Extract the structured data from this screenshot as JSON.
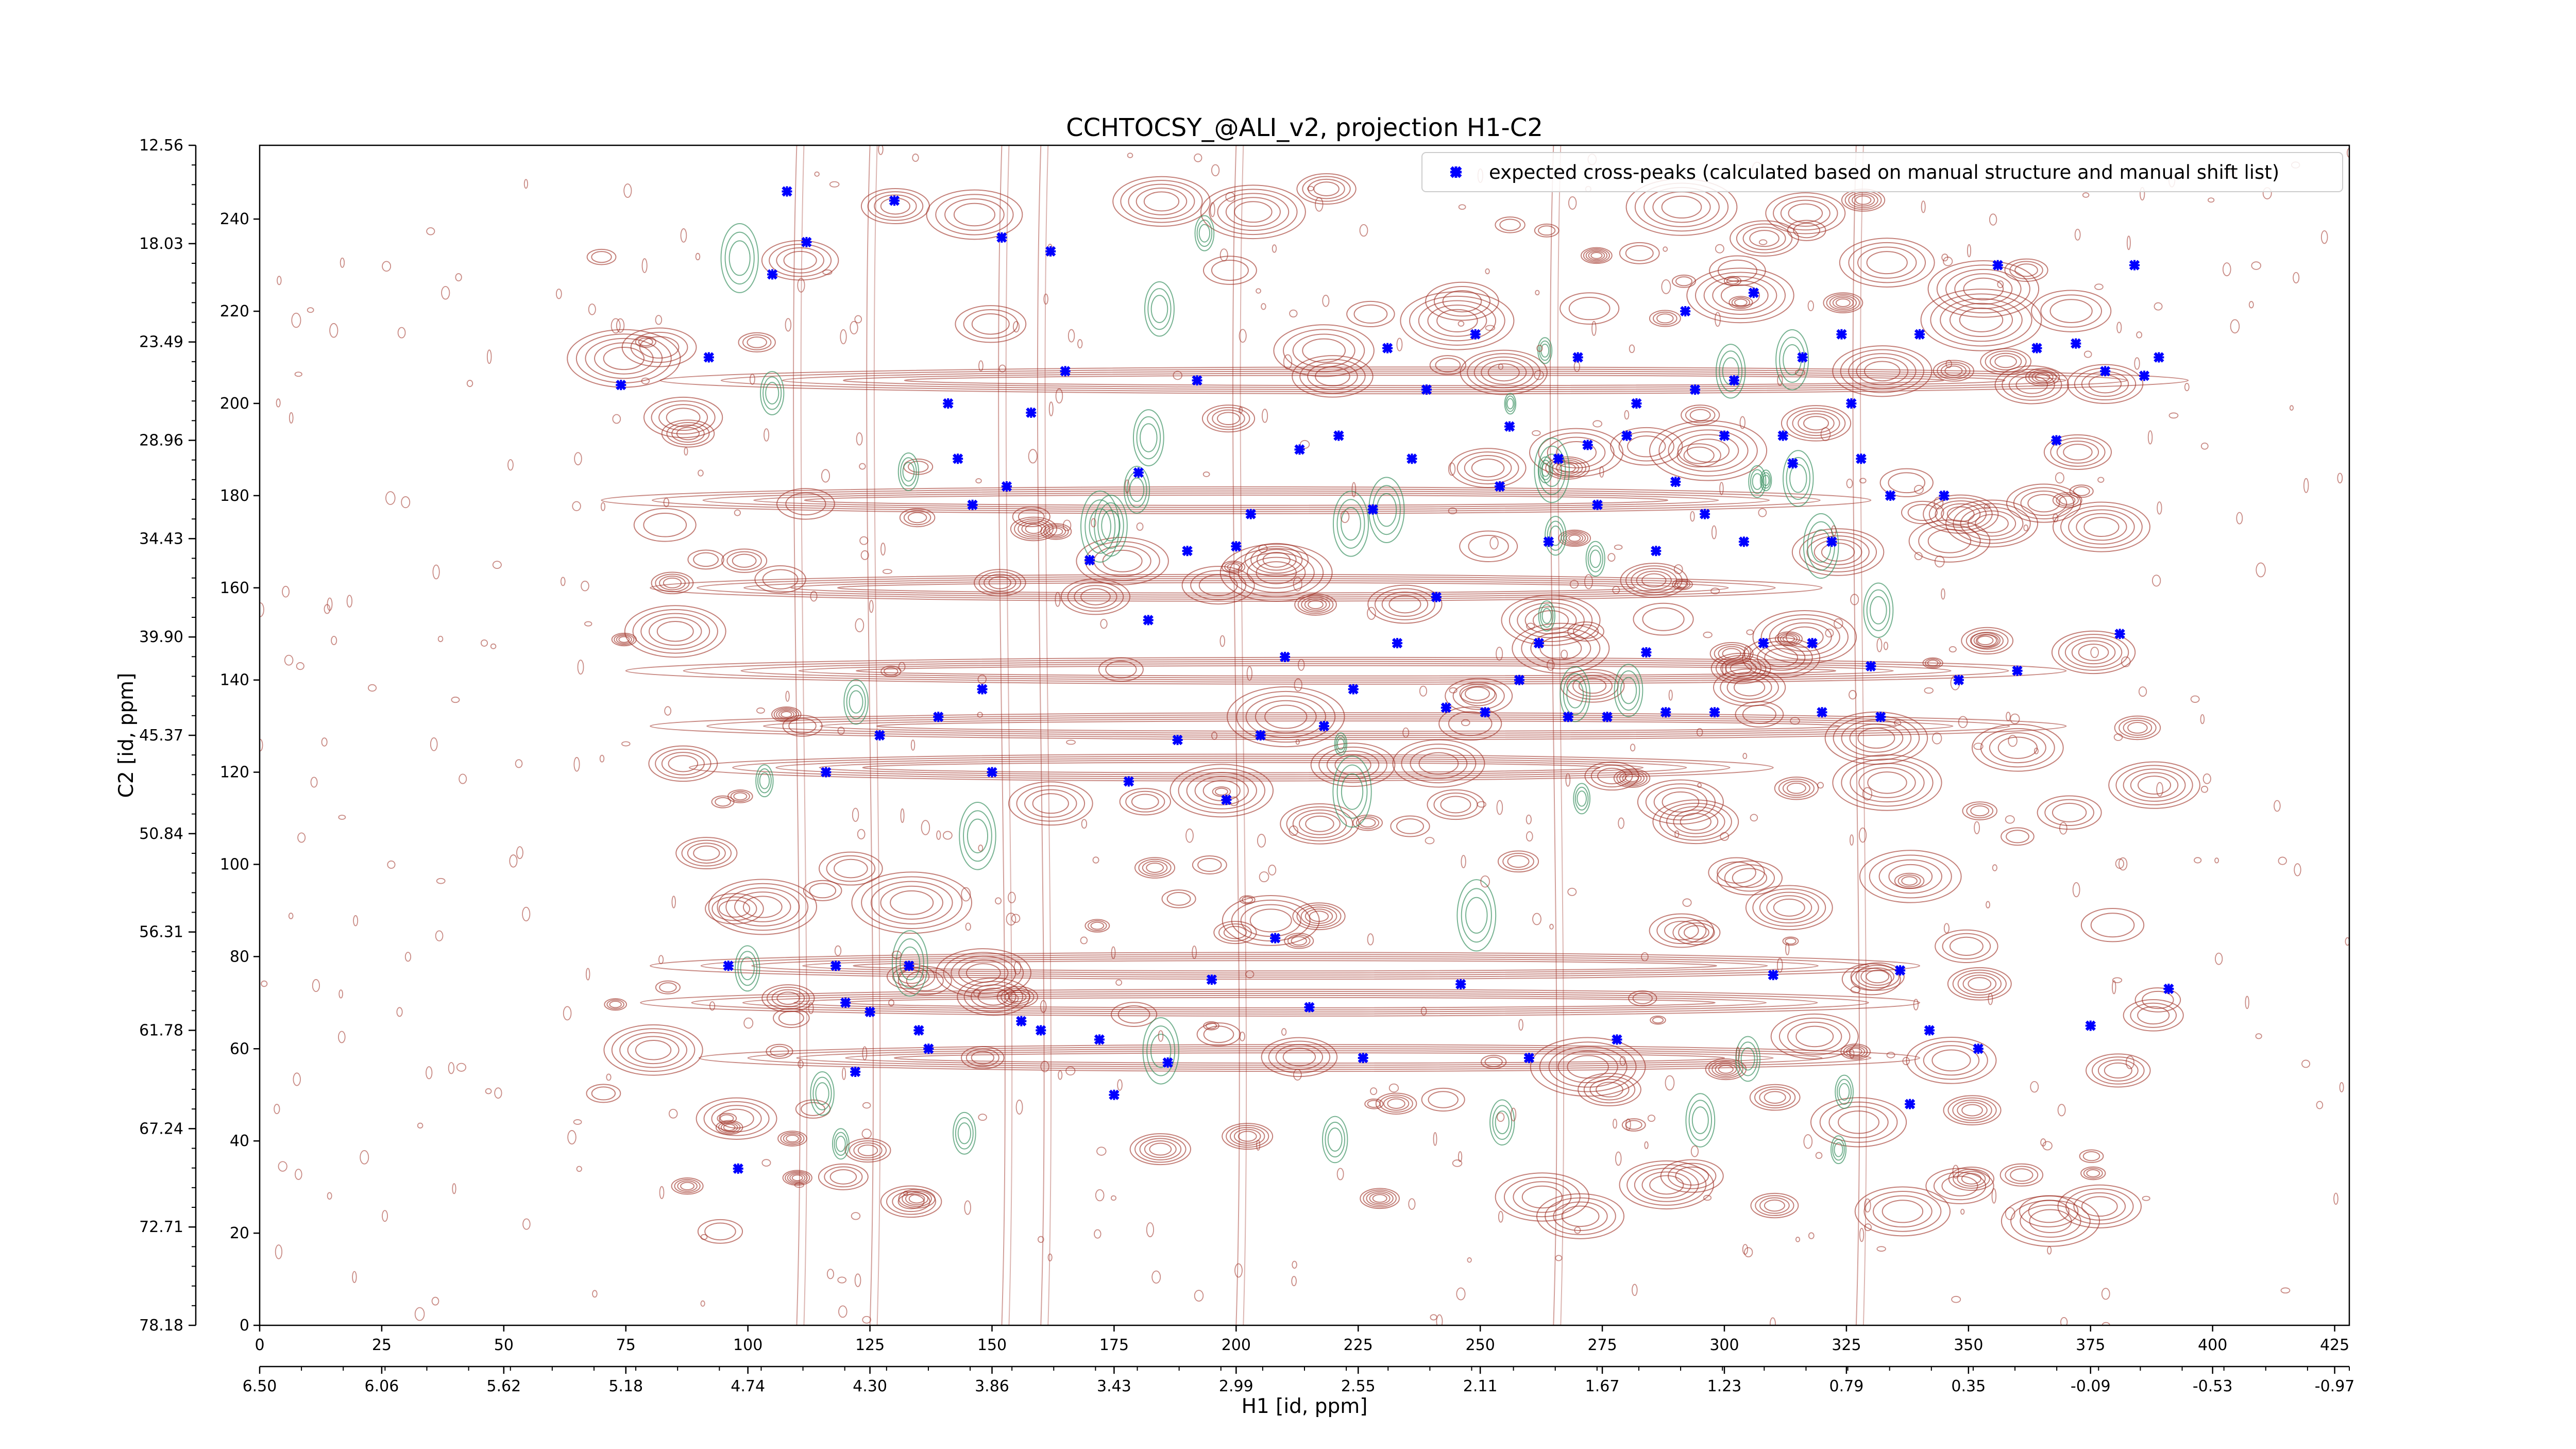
{
  "chart_data": {
    "type": "scatter",
    "title": "CCHTOCSY_@ALI_v2, projection H1-C2",
    "xlabel": "H1 [id, ppm]",
    "ylabel": "C2 [id, ppm]",
    "xlim": [
      0,
      428
    ],
    "ylim": [
      0,
      256
    ],
    "x_ticks": [
      0,
      25,
      50,
      75,
      100,
      125,
      150,
      175,
      200,
      225,
      250,
      275,
      300,
      325,
      350,
      375,
      400,
      425
    ],
    "y_ticks": [
      0,
      20,
      40,
      60,
      80,
      100,
      120,
      140,
      160,
      180,
      200,
      220,
      240
    ],
    "x_ppm_labels": [
      "6.50",
      "6.06",
      "5.62",
      "5.18",
      "4.74",
      "4.30",
      "3.86",
      "3.43",
      "2.99",
      "2.55",
      "2.11",
      "1.67",
      "1.23",
      "0.79",
      "0.35",
      "-0.09",
      "-0.53",
      "-0.97"
    ],
    "y_ppm_labels": [
      "78.18",
      "72.71",
      "67.24",
      "61.78",
      "56.31",
      "50.84",
      "45.37",
      "39.90",
      "34.43",
      "28.96",
      "23.49",
      "18.03",
      "12.56"
    ],
    "legend": {
      "position": "top-right",
      "entries": [
        "expected cross-peaks (calculated based on manual structure and manual shift list)"
      ]
    },
    "contour_colors": {
      "positive": "#9c2b20",
      "negative": "#2e8b57"
    },
    "series": [
      {
        "name": "expected cross-peaks (calculated based on manual structure and manual shift list)",
        "color": "#0000ff",
        "points": [
          [
            74,
            204
          ],
          [
            92,
            210
          ],
          [
            96,
            78
          ],
          [
            98,
            34
          ],
          [
            105,
            228
          ],
          [
            108,
            246
          ],
          [
            112,
            235
          ],
          [
            116,
            120
          ],
          [
            118,
            78
          ],
          [
            120,
            70
          ],
          [
            122,
            55
          ],
          [
            125,
            68
          ],
          [
            127,
            128
          ],
          [
            130,
            244
          ],
          [
            133,
            78
          ],
          [
            135,
            64
          ],
          [
            137,
            60
          ],
          [
            139,
            132
          ],
          [
            141,
            200
          ],
          [
            143,
            188
          ],
          [
            146,
            178
          ],
          [
            148,
            138
          ],
          [
            150,
            120
          ],
          [
            152,
            236
          ],
          [
            153,
            182
          ],
          [
            156,
            66
          ],
          [
            158,
            198
          ],
          [
            160,
            64
          ],
          [
            162,
            233
          ],
          [
            165,
            207
          ],
          [
            170,
            166
          ],
          [
            172,
            62
          ],
          [
            175,
            50
          ],
          [
            178,
            118
          ],
          [
            180,
            185
          ],
          [
            182,
            153
          ],
          [
            186,
            57
          ],
          [
            188,
            127
          ],
          [
            190,
            168
          ],
          [
            192,
            205
          ],
          [
            195,
            75
          ],
          [
            198,
            114
          ],
          [
            200,
            169
          ],
          [
            203,
            176
          ],
          [
            205,
            128
          ],
          [
            208,
            84
          ],
          [
            210,
            145
          ],
          [
            213,
            190
          ],
          [
            215,
            69
          ],
          [
            218,
            130
          ],
          [
            221,
            193
          ],
          [
            224,
            138
          ],
          [
            226,
            58
          ],
          [
            228,
            177
          ],
          [
            231,
            212
          ],
          [
            233,
            148
          ],
          [
            236,
            188
          ],
          [
            239,
            203
          ],
          [
            241,
            158
          ],
          [
            243,
            134
          ],
          [
            246,
            74
          ],
          [
            249,
            215
          ],
          [
            251,
            133
          ],
          [
            254,
            182
          ],
          [
            256,
            195
          ],
          [
            258,
            140
          ],
          [
            260,
            58
          ],
          [
            262,
            148
          ],
          [
            264,
            170
          ],
          [
            266,
            188
          ],
          [
            268,
            132
          ],
          [
            270,
            210
          ],
          [
            272,
            191
          ],
          [
            274,
            178
          ],
          [
            276,
            132
          ],
          [
            278,
            62
          ],
          [
            280,
            193
          ],
          [
            282,
            200
          ],
          [
            284,
            146
          ],
          [
            286,
            168
          ],
          [
            288,
            133
          ],
          [
            290,
            183
          ],
          [
            292,
            220
          ],
          [
            294,
            203
          ],
          [
            296,
            176
          ],
          [
            298,
            133
          ],
          [
            300,
            193
          ],
          [
            302,
            205
          ],
          [
            304,
            170
          ],
          [
            306,
            224
          ],
          [
            308,
            148
          ],
          [
            310,
            76
          ],
          [
            312,
            193
          ],
          [
            314,
            187
          ],
          [
            316,
            210
          ],
          [
            318,
            148
          ],
          [
            320,
            133
          ],
          [
            322,
            170
          ],
          [
            324,
            215
          ],
          [
            326,
            200
          ],
          [
            328,
            188
          ],
          [
            330,
            143
          ],
          [
            332,
            132
          ],
          [
            334,
            180
          ],
          [
            336,
            77
          ],
          [
            338,
            48
          ],
          [
            340,
            215
          ],
          [
            342,
            64
          ],
          [
            345,
            180
          ],
          [
            348,
            140
          ],
          [
            352,
            60
          ],
          [
            356,
            230
          ],
          [
            360,
            142
          ],
          [
            364,
            212
          ],
          [
            368,
            192
          ],
          [
            372,
            213
          ],
          [
            375,
            65
          ],
          [
            378,
            207
          ],
          [
            381,
            150
          ],
          [
            384,
            230
          ],
          [
            386,
            206
          ],
          [
            389,
            210
          ],
          [
            391,
            73
          ]
        ]
      }
    ]
  }
}
